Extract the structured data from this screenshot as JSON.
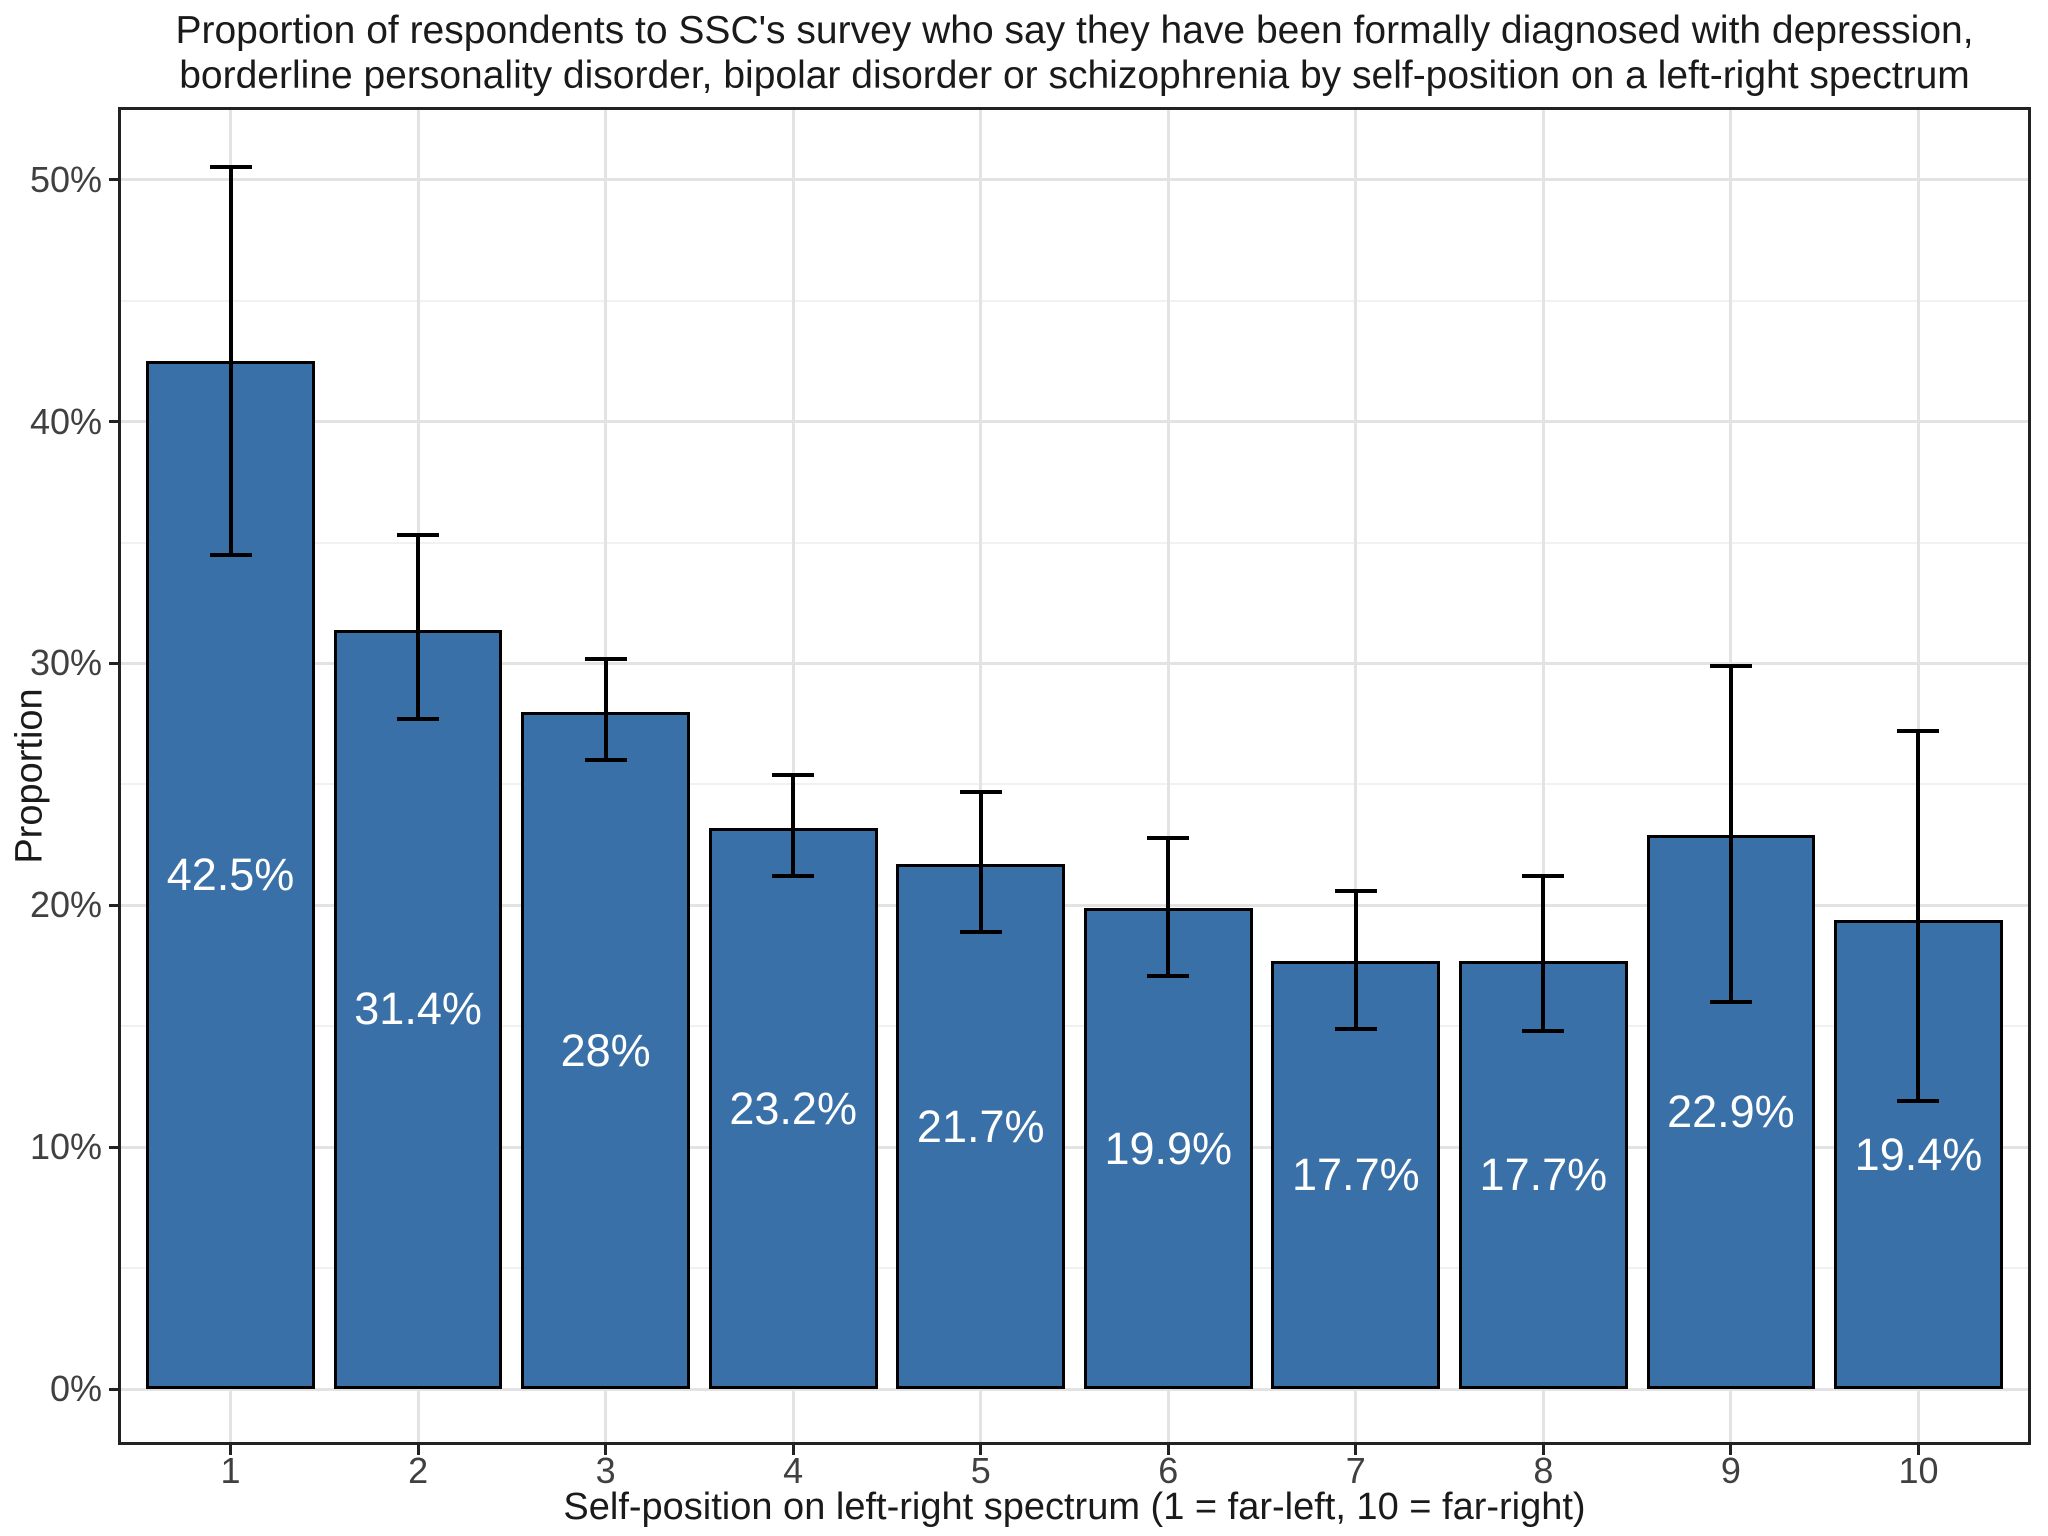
{
  "chart_data": {
    "type": "bar",
    "title": "Proportion of respondents to SSC's survey who say they have been formally diagnosed with depression, borderline personality disorder, bipolar disorder or schizophrenia by self-position on a left-right spectrum",
    "title_line1": "Proportion of respondents to SSC's survey who say they have been formally diagnosed with depression,",
    "title_line2": "borderline personality disorder, bipolar disorder or schizophrenia by self-position on a left-right spectrum",
    "xlabel": "Self-position on left-right spectrum (1 = far-left, 10 = far-right)",
    "ylabel": "Proportion",
    "categories": [
      "1",
      "2",
      "3",
      "4",
      "5",
      "6",
      "7",
      "8",
      "9",
      "10"
    ],
    "values": [
      42.5,
      31.4,
      28,
      23.2,
      21.7,
      19.9,
      17.7,
      17.7,
      22.9,
      19.4
    ],
    "bar_labels": [
      "42.5%",
      "31.4%",
      "28%",
      "23.2%",
      "21.7%",
      "19.9%",
      "17.7%",
      "17.7%",
      "22.9%",
      "19.4%"
    ],
    "error_low": [
      34.5,
      27.7,
      26.0,
      21.2,
      18.9,
      17.1,
      14.9,
      14.8,
      16.0,
      11.9
    ],
    "error_high": [
      50.5,
      35.3,
      30.2,
      25.4,
      24.7,
      22.8,
      20.6,
      21.2,
      29.9,
      27.2
    ],
    "y_axis": {
      "tick_values": [
        0,
        10,
        20,
        30,
        40,
        50
      ],
      "tick_labels": [
        "0%",
        "10%",
        "20%",
        "30%",
        "40%",
        "50%"
      ],
      "minor_tick_values": [
        5,
        15,
        25,
        35,
        45
      ],
      "domain": [
        -2.3,
        53.0
      ]
    },
    "grid": {
      "horizontal": "major and minor gridlines",
      "vertical": "major gridlines at category centers",
      "background": "white panel with black border"
    },
    "legend": "none",
    "colors": {
      "bar_fill": "#3A70A8",
      "bar_border": "#000000",
      "error_bar": "#000000",
      "grid_major": "#E3E3E3",
      "grid_minor": "#F1F1F1",
      "panel_border": "#222222",
      "axis_text": "#404040",
      "title_text": "#1A1A1A",
      "bar_label_text": "#FFFFFF",
      "background": "#FFFFFF"
    }
  }
}
